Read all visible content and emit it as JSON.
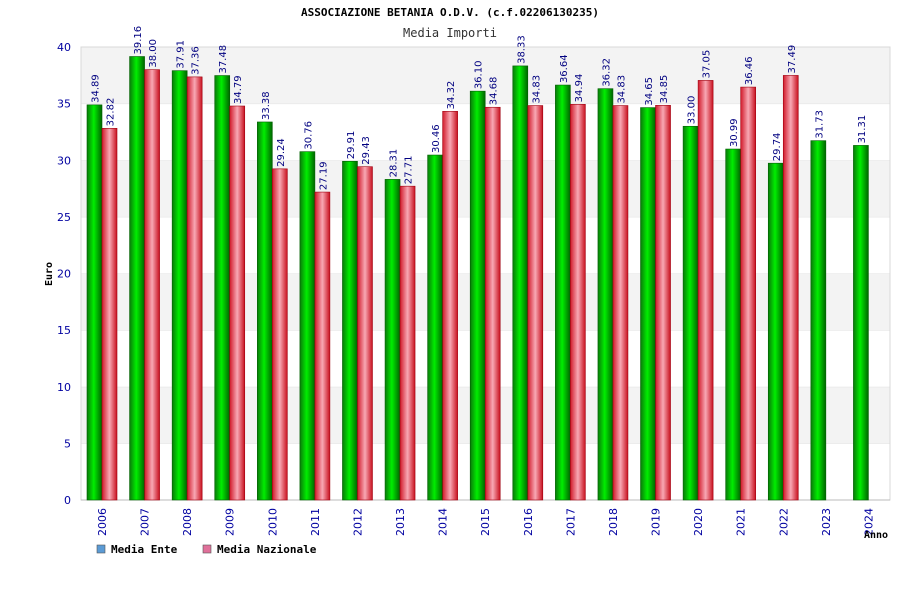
{
  "chart_data": {
    "type": "bar",
    "title": "ASSOCIAZIONE BETANIA O.D.V. (c.f.02206130235)",
    "subtitle": "Media Importi",
    "xlabel": "Anno",
    "ylabel": "Euro",
    "ylim": [
      0,
      40
    ],
    "yticks": [
      "0",
      "5",
      "10",
      "15",
      "20",
      "25",
      "30",
      "35",
      "40"
    ],
    "grid": "horizontal bands",
    "legend_position": "bottom-left",
    "categories": [
      "2006",
      "2007",
      "2008",
      "2009",
      "2010",
      "2011",
      "2012",
      "2013",
      "2014",
      "2015",
      "2016",
      "2017",
      "2018",
      "2019",
      "2020",
      "2021",
      "2022",
      "2023",
      "2024"
    ],
    "series": [
      {
        "name": "Media Ente",
        "legend_color": "#5b9bd5",
        "bar_color": "#00a000",
        "values": [
          34.89,
          39.16,
          37.91,
          37.48,
          33.38,
          30.76,
          29.91,
          28.31,
          30.46,
          36.1,
          38.33,
          36.64,
          36.32,
          34.65,
          33.0,
          30.99,
          29.74,
          31.73,
          31.31
        ],
        "labels": [
          "34.89",
          "39.16",
          "37.91",
          "37.48",
          "33.38",
          "30.76",
          "29.91",
          "28.31",
          "30.46",
          "36.10",
          "38.33",
          "36.64",
          "36.32",
          "34.65",
          "33.00",
          "30.99",
          "29.74",
          "31.73",
          "31.31"
        ]
      },
      {
        "name": "Media Nazionale",
        "legend_color": "#e0709a",
        "bar_color": "#e0202a",
        "values": [
          32.82,
          38.0,
          37.36,
          34.79,
          29.24,
          27.19,
          29.43,
          27.71,
          34.32,
          34.68,
          34.83,
          34.94,
          34.83,
          34.85,
          37.05,
          36.46,
          37.49,
          null,
          null
        ],
        "labels": [
          "32.82",
          "38.00",
          "37.36",
          "34.79",
          "29.24",
          "27.19",
          "29.43",
          "27.71",
          "34.32",
          "34.68",
          "34.83",
          "34.94",
          "34.83",
          "34.85",
          "37.05",
          "36.46",
          "37.49",
          null,
          null
        ]
      }
    ]
  }
}
